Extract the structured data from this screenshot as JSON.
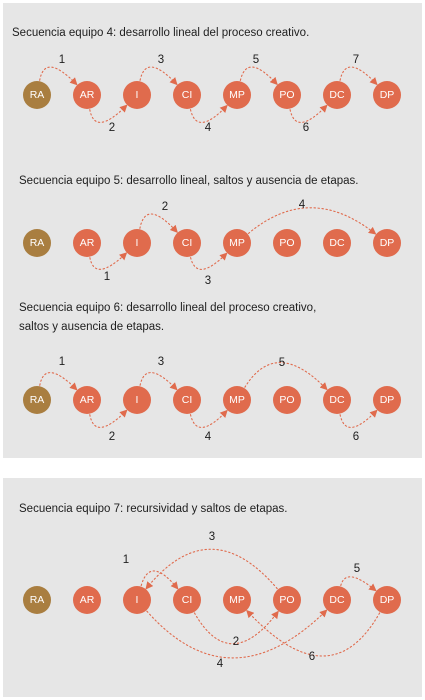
{
  "colors": {
    "node_default": "#e06b4d",
    "node_start": "#a97e40",
    "arrow": "#e06b4d",
    "panel_bg": "#e6e6e6",
    "text": "#1e1e1e"
  },
  "nodes": [
    "RA",
    "AR",
    "I",
    "CI",
    "MP",
    "PO",
    "DC",
    "DP"
  ],
  "sequences": [
    {
      "title_lines": [
        "Secuencia equipo 4: desarrollo lineal del proceso creativo."
      ],
      "steps": [
        {
          "label": "1",
          "from": "RA",
          "to": "AR"
        },
        {
          "label": "2",
          "from": "AR",
          "to": "I"
        },
        {
          "label": "3",
          "from": "I",
          "to": "CI"
        },
        {
          "label": "4",
          "from": "CI",
          "to": "MP"
        },
        {
          "label": "5",
          "from": "MP",
          "to": "PO"
        },
        {
          "label": "6",
          "from": "PO",
          "to": "DC"
        },
        {
          "label": "7",
          "from": "DC",
          "to": "DP"
        }
      ]
    },
    {
      "title_lines": [
        "Secuencia equipo 5: desarrollo lineal, saltos y ausencia de etapas."
      ],
      "steps": [
        {
          "label": "1",
          "from": "AR",
          "to": "I"
        },
        {
          "label": "2",
          "from": "I",
          "to": "CI"
        },
        {
          "label": "3",
          "from": "CI",
          "to": "MP"
        },
        {
          "label": "4",
          "from": "MP",
          "to": "DP"
        }
      ]
    },
    {
      "title_lines": [
        "Secuencia equipo 6: desarrollo lineal del proceso creativo,",
        "saltos y ausencia de etapas."
      ],
      "steps": [
        {
          "label": "1",
          "from": "RA",
          "to": "AR"
        },
        {
          "label": "2",
          "from": "AR",
          "to": "I"
        },
        {
          "label": "3",
          "from": "I",
          "to": "CI"
        },
        {
          "label": "4",
          "from": "CI",
          "to": "MP"
        },
        {
          "label": "5",
          "from": "MP",
          "to": "DC"
        },
        {
          "label": "6",
          "from": "DC",
          "to": "DP"
        }
      ]
    },
    {
      "title_lines": [
        "Secuencia equipo 7: recursividad y saltos de etapas."
      ],
      "steps": [
        {
          "label": "1",
          "from": "I",
          "to": "CI"
        },
        {
          "label": "2",
          "from": "CI",
          "to": "PO"
        },
        {
          "label": "3",
          "from": "PO",
          "to": "I"
        },
        {
          "label": "4",
          "from": "I",
          "to": "DC"
        },
        {
          "label": "5",
          "from": "DC",
          "to": "DP"
        },
        {
          "label": "6",
          "from": "DP",
          "to": "MP"
        }
      ]
    }
  ]
}
